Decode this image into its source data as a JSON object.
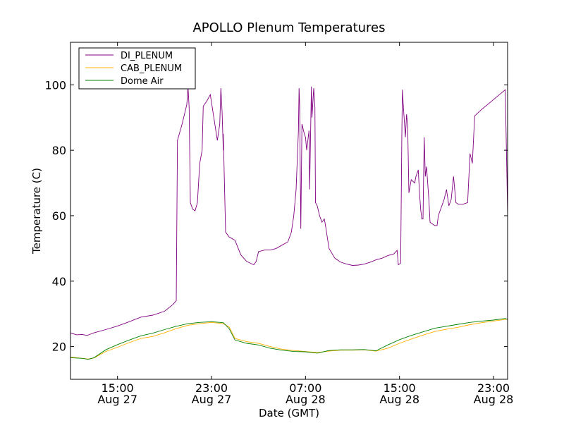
{
  "chart_data": {
    "type": "line",
    "title": "APOLLO Plenum Temperatures",
    "xlabel": "Date (GMT)",
    "ylabel": "Temperature (C)",
    "x_unit": "hours since Aug 27 11:00 GMT",
    "xlim": [
      0,
      37.2
    ],
    "ylim": [
      10,
      113
    ],
    "yticks": [
      20,
      40,
      60,
      80,
      100
    ],
    "xticks": [
      {
        "x": 4,
        "line1": "15:00",
        "line2": "Aug 27"
      },
      {
        "x": 12,
        "line1": "23:00",
        "line2": "Aug 27"
      },
      {
        "x": 20,
        "line1": "07:00",
        "line2": "Aug 28"
      },
      {
        "x": 28,
        "line1": "15:00",
        "line2": "Aug 28"
      },
      {
        "x": 36,
        "line1": "23:00",
        "line2": "Aug 28"
      }
    ],
    "legend_position": "top-left",
    "series": [
      {
        "name": "DI_PLENUM",
        "color": "#800080",
        "points": [
          [
            0,
            24.2
          ],
          [
            0.5,
            23.6
          ],
          [
            1.0,
            23.7
          ],
          [
            1.4,
            23.4
          ],
          [
            2.0,
            24.2
          ],
          [
            3,
            25.2
          ],
          [
            4,
            26.3
          ],
          [
            5,
            27.6
          ],
          [
            6,
            29.0
          ],
          [
            7,
            29.6
          ],
          [
            8,
            30.8
          ],
          [
            8.7,
            32.8
          ],
          [
            9.0,
            34.0
          ],
          [
            9.1,
            83
          ],
          [
            9.5,
            88
          ],
          [
            9.9,
            94
          ],
          [
            10.0,
            99.5
          ],
          [
            10.1,
            93
          ],
          [
            10.2,
            64
          ],
          [
            10.4,
            62
          ],
          [
            10.6,
            61.5
          ],
          [
            10.8,
            64
          ],
          [
            11.0,
            76
          ],
          [
            11.2,
            80
          ],
          [
            11.3,
            93.5
          ],
          [
            11.6,
            95
          ],
          [
            11.9,
            97
          ],
          [
            12.2,
            90
          ],
          [
            12.5,
            83
          ],
          [
            12.7,
            88
          ],
          [
            12.8,
            99
          ],
          [
            12.9,
            92
          ],
          [
            13.0,
            80
          ],
          [
            13.0,
            85
          ],
          [
            13.2,
            55
          ],
          [
            13.5,
            53.5
          ],
          [
            14.0,
            52.5
          ],
          [
            14.5,
            48
          ],
          [
            15.0,
            46
          ],
          [
            15.6,
            45
          ],
          [
            15.8,
            46
          ],
          [
            16.0,
            49
          ],
          [
            16.5,
            49.5
          ],
          [
            17.0,
            49.5
          ],
          [
            17.5,
            50
          ],
          [
            18.0,
            51
          ],
          [
            18.5,
            52
          ],
          [
            18.8,
            55
          ],
          [
            19.0,
            60
          ],
          [
            19.2,
            68
          ],
          [
            19.4,
            86
          ],
          [
            19.45,
            99
          ],
          [
            19.5,
            94
          ],
          [
            19.6,
            56
          ],
          [
            19.7,
            88
          ],
          [
            19.9,
            85
          ],
          [
            20.0,
            84
          ],
          [
            20.1,
            80
          ],
          [
            20.3,
            86
          ],
          [
            20.35,
            68
          ],
          [
            20.5,
            99.5
          ],
          [
            20.55,
            90
          ],
          [
            20.7,
            99
          ],
          [
            20.8,
            93
          ],
          [
            20.85,
            64
          ],
          [
            21.0,
            63
          ],
          [
            21.2,
            60
          ],
          [
            21.4,
            58
          ],
          [
            21.6,
            59
          ],
          [
            21.7,
            57
          ],
          [
            22.0,
            50
          ],
          [
            22.5,
            47
          ],
          [
            23,
            45.8
          ],
          [
            23.5,
            45.2
          ],
          [
            24,
            44.8
          ],
          [
            24.5,
            44.9
          ],
          [
            25,
            45.2
          ],
          [
            25.5,
            45.8
          ],
          [
            26,
            46.5
          ],
          [
            26.5,
            47
          ],
          [
            27,
            47.8
          ],
          [
            27.5,
            48.3
          ],
          [
            27.8,
            49.4
          ],
          [
            27.9,
            45
          ],
          [
            28.1,
            45.5
          ],
          [
            28.2,
            85
          ],
          [
            28.25,
            98.5
          ],
          [
            28.3,
            95
          ],
          [
            28.5,
            84
          ],
          [
            28.6,
            91
          ],
          [
            28.7,
            87
          ],
          [
            28.8,
            67
          ],
          [
            29.0,
            71
          ],
          [
            29.3,
            70
          ],
          [
            29.4,
            72
          ],
          [
            29.6,
            74
          ],
          [
            29.7,
            67
          ],
          [
            29.8,
            62
          ],
          [
            29.9,
            59
          ],
          [
            30.0,
            59
          ],
          [
            30.1,
            84
          ],
          [
            30.2,
            72
          ],
          [
            30.3,
            75
          ],
          [
            30.5,
            65
          ],
          [
            30.6,
            58
          ],
          [
            30.8,
            57.5
          ],
          [
            31.0,
            57
          ],
          [
            31.2,
            57
          ],
          [
            31.3,
            60
          ],
          [
            31.6,
            63
          ],
          [
            31.8,
            65
          ],
          [
            32.0,
            68
          ],
          [
            32.2,
            63
          ],
          [
            32.4,
            65
          ],
          [
            32.6,
            72
          ],
          [
            32.8,
            64
          ],
          [
            33.0,
            63.5
          ],
          [
            33.4,
            63.5
          ],
          [
            33.8,
            64
          ],
          [
            34.0,
            79
          ],
          [
            34.2,
            76
          ],
          [
            34.4,
            90.5
          ],
          [
            35,
            92.5
          ],
          [
            35.5,
            94
          ],
          [
            36,
            95.5
          ],
          [
            36.5,
            97
          ],
          [
            37.0,
            98.5
          ],
          [
            37.15,
            70
          ],
          [
            37.2,
            60
          ]
        ]
      },
      {
        "name": "CAB_PLENUM",
        "color": "#ffb000",
        "points": [
          [
            0,
            16.8
          ],
          [
            1,
            16.4
          ],
          [
            1.5,
            16.2
          ],
          [
            2,
            16.5
          ],
          [
            3,
            18.5
          ],
          [
            4,
            19.8
          ],
          [
            5,
            21.2
          ],
          [
            6,
            22.5
          ],
          [
            7,
            23.1
          ],
          [
            8,
            24.2
          ],
          [
            9,
            25.5
          ],
          [
            10,
            26.5
          ],
          [
            11,
            27.0
          ],
          [
            12,
            27.4
          ],
          [
            13,
            27.0
          ],
          [
            13.5,
            26.0
          ],
          [
            14,
            22.5
          ],
          [
            15,
            21.5
          ],
          [
            16,
            21.0
          ],
          [
            17,
            20.0
          ],
          [
            18,
            19.2
          ],
          [
            19,
            18.8
          ],
          [
            20,
            18.5
          ],
          [
            21,
            18.2
          ],
          [
            22,
            18.6
          ],
          [
            23,
            18.9
          ],
          [
            24,
            18.9
          ],
          [
            25,
            19.0
          ],
          [
            26,
            18.6
          ],
          [
            27,
            19.5
          ],
          [
            28,
            21.0
          ],
          [
            29,
            22.3
          ],
          [
            30,
            23.5
          ],
          [
            31,
            24.6
          ],
          [
            32,
            25.3
          ],
          [
            33,
            25.9
          ],
          [
            34,
            26.7
          ],
          [
            35,
            27.3
          ],
          [
            36,
            27.8
          ],
          [
            37,
            28.3
          ],
          [
            37.2,
            28.3
          ]
        ]
      },
      {
        "name": "Dome Air",
        "color": "#008000",
        "points": [
          [
            0,
            16.6
          ],
          [
            1,
            16.4
          ],
          [
            1.5,
            16.1
          ],
          [
            2,
            16.6
          ],
          [
            3,
            19.0
          ],
          [
            4,
            20.6
          ],
          [
            5,
            22.0
          ],
          [
            6,
            23.3
          ],
          [
            7,
            24.1
          ],
          [
            8,
            25.2
          ],
          [
            9,
            26.2
          ],
          [
            10,
            27.0
          ],
          [
            11,
            27.4
          ],
          [
            12,
            27.6
          ],
          [
            13,
            27.3
          ],
          [
            13.5,
            25.5
          ],
          [
            14,
            22.0
          ],
          [
            15,
            21.0
          ],
          [
            16,
            20.5
          ],
          [
            17,
            19.5
          ],
          [
            18,
            18.9
          ],
          [
            19,
            18.5
          ],
          [
            20,
            18.4
          ],
          [
            21,
            18.0
          ],
          [
            22,
            18.8
          ],
          [
            23,
            19.0
          ],
          [
            24,
            19.0
          ],
          [
            25,
            19.1
          ],
          [
            26,
            18.7
          ],
          [
            27,
            20.5
          ],
          [
            28,
            22.1
          ],
          [
            29,
            23.4
          ],
          [
            30,
            24.5
          ],
          [
            31,
            25.6
          ],
          [
            32,
            26.2
          ],
          [
            33,
            26.8
          ],
          [
            34,
            27.4
          ],
          [
            35,
            27.8
          ],
          [
            36,
            28.1
          ],
          [
            37,
            28.6
          ],
          [
            37.2,
            28.3
          ]
        ]
      }
    ]
  }
}
